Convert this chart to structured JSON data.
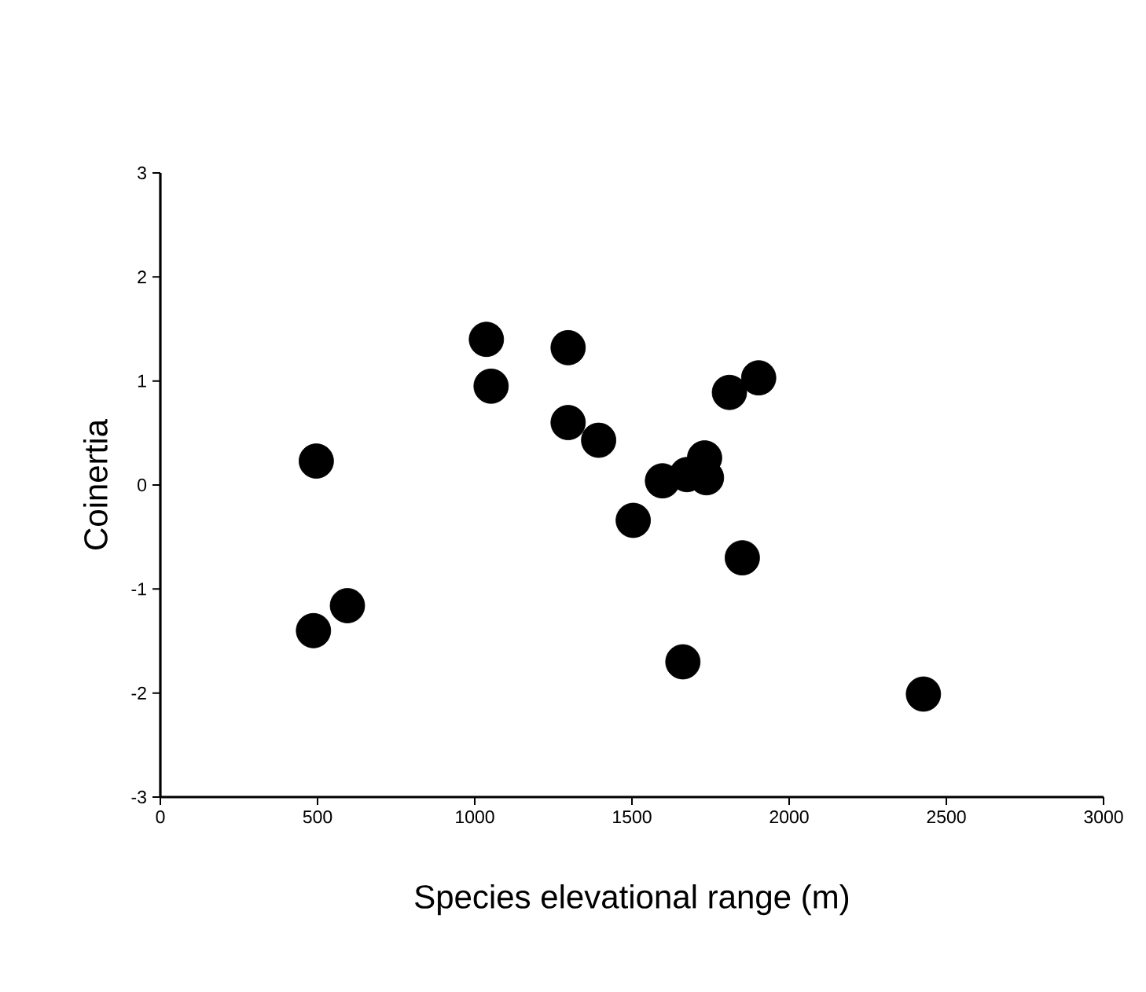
{
  "chart_data": {
    "type": "scatter",
    "xlabel": "Species elevational range (m)",
    "ylabel": "Coinertia",
    "x": [
      1037,
      1052,
      1297,
      1297,
      1394,
      496,
      1597,
      1675,
      1731,
      1737,
      1810,
      1903,
      1504,
      1851,
      595,
      487,
      1662,
      2427
    ],
    "values": [
      1.4,
      0.95,
      1.32,
      0.6,
      0.43,
      0.23,
      0.04,
      0.1,
      0.26,
      0.07,
      0.89,
      1.03,
      -0.34,
      -0.7,
      -1.16,
      -1.4,
      -1.7,
      -2.01
    ],
    "color": "#000000",
    "marker": "circle",
    "grid": false,
    "xlim": [
      0,
      3000
    ],
    "xticks": [
      0,
      500,
      1000,
      1500,
      2000,
      2500,
      3000
    ],
    "ylim": [
      -3,
      3
    ],
    "yticks": [
      -3,
      -2,
      -1,
      0,
      1,
      2,
      3
    ]
  }
}
